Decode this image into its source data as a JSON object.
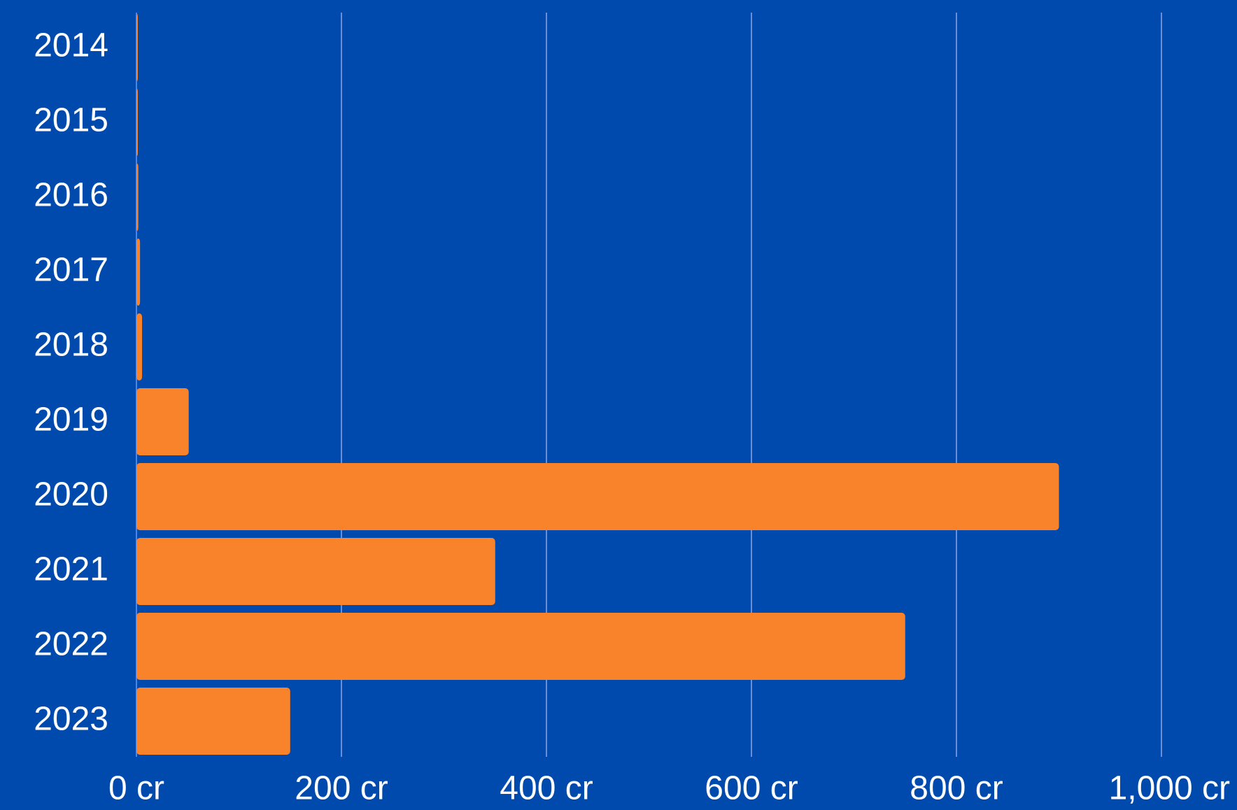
{
  "chart_data": {
    "type": "bar",
    "orientation": "horizontal",
    "title": "",
    "xlabel": "",
    "ylabel": "",
    "categories": [
      "2014",
      "2015",
      "2016",
      "2017",
      "2018",
      "2019",
      "2020",
      "2021",
      "2022",
      "2023"
    ],
    "values": [
      0.8,
      1.2,
      1.8,
      3.5,
      5.5,
      51,
      900,
      350,
      750,
      150
    ],
    "xlim": [
      0,
      1000
    ],
    "x_ticks": [
      0,
      200,
      400,
      600,
      800,
      1000
    ],
    "x_tick_labels": [
      "0 cr",
      "200 cr",
      "400 cr",
      "600 cr",
      "800 cr",
      "1,000 cr"
    ],
    "grid": "vertical",
    "legend": "none",
    "colors": {
      "background": "#004aad",
      "bar": "#f8832b",
      "grid": "#6a8fd6",
      "text": "#ffffff"
    }
  }
}
